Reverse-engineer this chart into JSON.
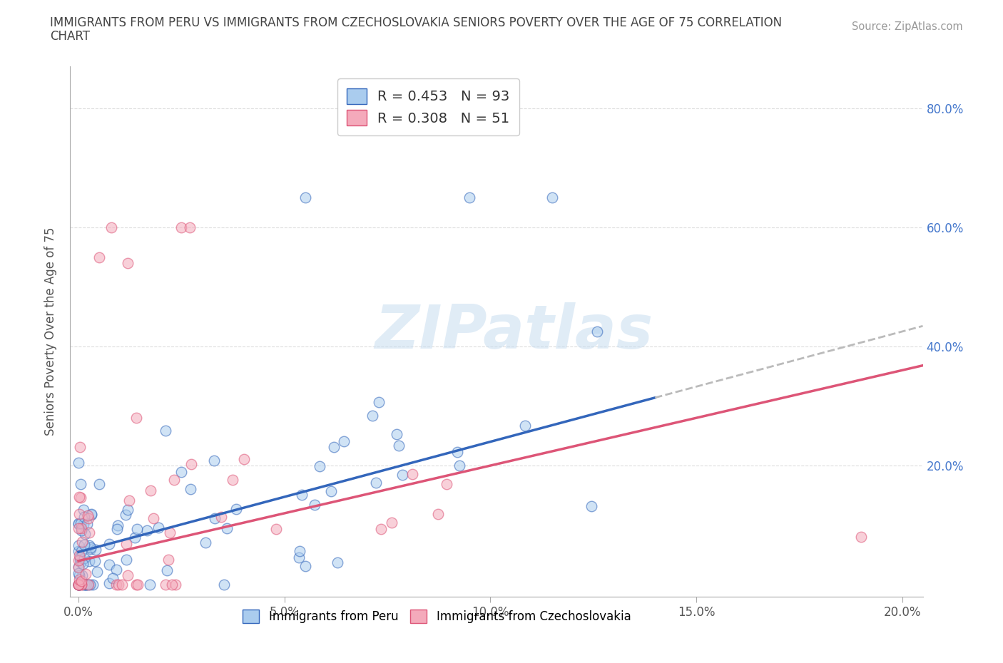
{
  "title_line1": "IMMIGRANTS FROM PERU VS IMMIGRANTS FROM CZECHOSLOVAKIA SENIORS POVERTY OVER THE AGE OF 75 CORRELATION",
  "title_line2": "CHART",
  "source_text": "Source: ZipAtlas.com",
  "ylabel": "Seniors Poverty Over the Age of 75",
  "xlim": [
    -0.002,
    0.205
  ],
  "ylim": [
    -0.02,
    0.87
  ],
  "xtick_labels": [
    "0.0%",
    "5.0%",
    "10.0%",
    "15.0%",
    "20.0%"
  ],
  "xtick_vals": [
    0.0,
    0.05,
    0.1,
    0.15,
    0.2
  ],
  "ytick_labels": [
    "20.0%",
    "40.0%",
    "60.0%",
    "80.0%"
  ],
  "ytick_vals": [
    0.2,
    0.4,
    0.6,
    0.8
  ],
  "legend_R1": "R = 0.453",
  "legend_N1": "N = 93",
  "legend_R2": "R = 0.308",
  "legend_N2": "N = 51",
  "color_peru": "#aaccee",
  "color_czech": "#f4aabb",
  "line_color_peru": "#3366bb",
  "line_color_czech": "#dd5577",
  "line_color_ext": "#bbbbbb",
  "watermark": "ZIPatlas",
  "peru_slope": 1.85,
  "peru_intercept": 0.055,
  "peru_line_end": 0.14,
  "czech_slope": 1.6,
  "czech_intercept": 0.04,
  "background_color": "#ffffff",
  "grid_color": "#dddddd",
  "scatter_size": 110,
  "scatter_alpha": 0.55,
  "scatter_lw": 1.0
}
